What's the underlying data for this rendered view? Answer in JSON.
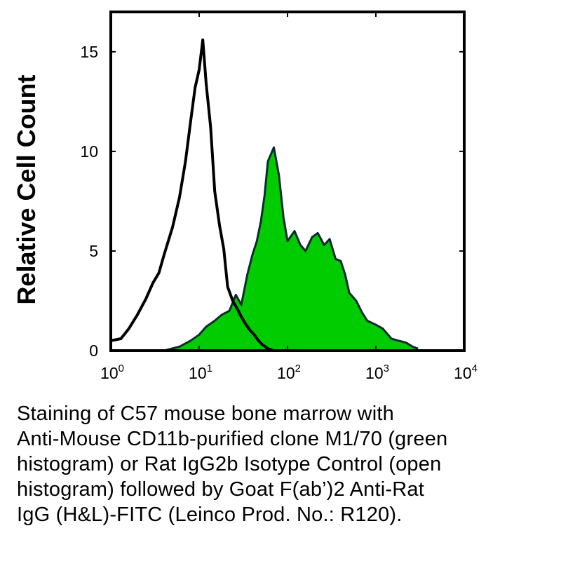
{
  "chart_data": {
    "type": "area",
    "title": "",
    "xlabel": "",
    "ylabel": "Relative Cell Count",
    "x_scale": "log",
    "xlim": [
      1,
      10000
    ],
    "ylim": [
      0,
      17
    ],
    "x_ticks": [
      {
        "base": "10",
        "exp": "0",
        "value": 1
      },
      {
        "base": "10",
        "exp": "1",
        "value": 10
      },
      {
        "base": "10",
        "exp": "2",
        "value": 100
      },
      {
        "base": "10",
        "exp": "3",
        "value": 1000
      },
      {
        "base": "10",
        "exp": "4",
        "value": 10000
      }
    ],
    "y_ticks": [
      "0",
      "5",
      "10",
      "15"
    ],
    "grid": false,
    "legend": "none",
    "series": [
      {
        "style": "open",
        "color": "#000000",
        "x": [
          1,
          1.3,
          1.6,
          2.0,
          2.5,
          3.0,
          3.5,
          4.0,
          5.0,
          6.0,
          7.0,
          8.0,
          9.0,
          10.0,
          11.0,
          12.0,
          13.5,
          15.0,
          17.0,
          19.0,
          21.0,
          24.0,
          27.0,
          30.0,
          34.0,
          38.0,
          42.0,
          47.0,
          52.0,
          60.0,
          70.0
        ],
        "y": [
          0.5,
          0.6,
          1.1,
          1.8,
          2.6,
          3.4,
          3.9,
          4.8,
          6.2,
          7.7,
          9.5,
          11.5,
          13.2,
          14.1,
          15.6,
          13.4,
          11.2,
          8.0,
          6.3,
          5.1,
          3.2,
          2.5,
          2.1,
          1.7,
          1.3,
          1.0,
          0.8,
          0.5,
          0.3,
          0.1,
          0.0
        ]
      },
      {
        "style": "filled",
        "color": "#00cc00",
        "x": [
          4,
          6,
          8,
          10,
          12,
          15,
          18,
          22,
          26,
          30,
          35,
          40,
          45,
          50,
          55,
          60,
          70,
          80,
          90,
          100,
          120,
          140,
          160,
          190,
          220,
          260,
          300,
          350,
          400,
          450,
          500,
          600,
          700,
          800,
          1000,
          1200,
          1500,
          1800,
          2200,
          2600,
          3000
        ],
        "y": [
          0.0,
          0.2,
          0.5,
          0.8,
          1.2,
          1.5,
          1.8,
          2.0,
          2.8,
          2.3,
          3.8,
          4.8,
          5.5,
          6.5,
          7.8,
          9.5,
          10.2,
          8.8,
          6.7,
          5.5,
          6.0,
          5.3,
          5.0,
          5.7,
          5.9,
          5.3,
          5.6,
          4.6,
          4.5,
          3.8,
          2.9,
          2.5,
          1.9,
          1.5,
          1.3,
          1.1,
          0.6,
          0.5,
          0.4,
          0.2,
          0.1
        ]
      }
    ]
  },
  "caption": {
    "lines": [
      "Staining of C57 mouse bone marrow with",
      "Anti-Mouse CD11b-purified clone M1/70 (green",
      "histogram) or Rat IgG2b Isotype Control (open",
      "histogram) followed by Goat F(ab’)2 Anti-Rat",
      "IgG (H&L)-FITC (Leinco Prod. No.: R120)."
    ]
  }
}
